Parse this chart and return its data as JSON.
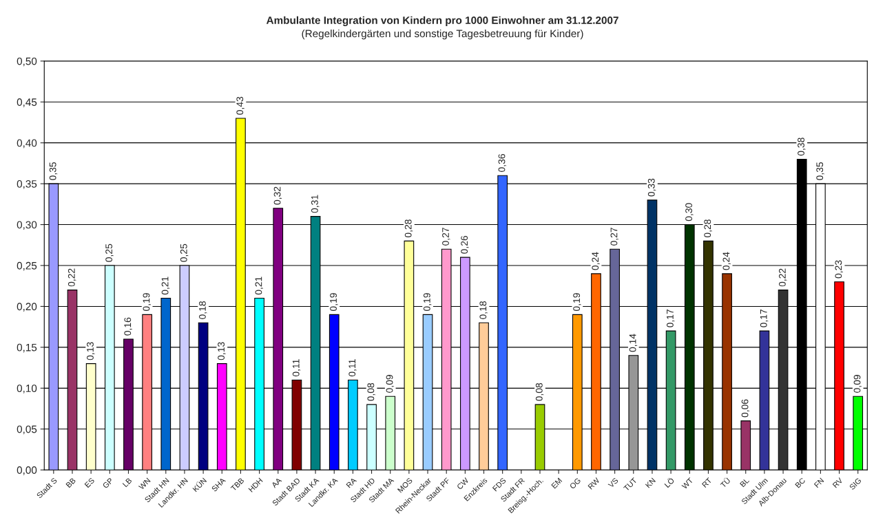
{
  "chart_data": {
    "type": "bar",
    "title": "Ambulante Integration von Kindern pro 1000 Einwohner am 31.12.2007",
    "subtitle": "(Regelkindergärten und sonstige Tagesbetreuung für Kinder)",
    "categories": [
      "Stadt S",
      "BB",
      "ES",
      "GP",
      "LB",
      "WN",
      "Stadt HN",
      "Landkr. HN",
      "KÜN",
      "SHA",
      "TBB",
      "HDH",
      "AA",
      "Stadt BAD",
      "Stadt KA",
      "Landkr. KA",
      "RA",
      "Stadt HD",
      "Stadt MA",
      "MOS",
      "Rhein-Neckar",
      "Stadt PF",
      "CW",
      "Enzkreis",
      "FDS",
      "Stadt FR",
      "Breisg.-Hoch.",
      "EM",
      "OG",
      "RW",
      "VS",
      "TUT",
      "KN",
      "LÖ",
      "WT",
      "RT",
      "TÜ",
      "BL",
      "Stadt Ulm",
      "Alb-Donau",
      "BC",
      "FN",
      "RV",
      "SIG"
    ],
    "values": [
      0.35,
      0.22,
      0.13,
      0.25,
      0.16,
      0.19,
      0.21,
      0.25,
      0.18,
      0.13,
      0.43,
      0.21,
      0.32,
      0.11,
      0.31,
      0.19,
      0.11,
      0.08,
      0.09,
      0.28,
      0.19,
      0.27,
      0.26,
      0.18,
      0.36,
      null,
      0.08,
      null,
      0.19,
      0.24,
      0.27,
      0.14,
      0.33,
      0.17,
      0.3,
      0.28,
      0.24,
      0.06,
      0.17,
      0.22,
      0.38,
      0.35,
      0.23,
      0.09
    ],
    "value_labels": [
      "0,35",
      "0,22",
      "0,13",
      "0,25",
      "0,16",
      "0,19",
      "0,21",
      "0,25",
      "0,18",
      "0,13",
      "0,43",
      "0,21",
      "0,32",
      "0,11",
      "0,31",
      "0,19",
      "0,11",
      "0,08",
      "0,09",
      "0,28",
      "0,19",
      "0,27",
      "0,26",
      "0,18",
      "0,36",
      null,
      "0,08",
      null,
      "0,19",
      "0,24",
      "0,27",
      "0,14",
      "0,33",
      "0,17",
      "0,30",
      "0,28",
      "0,24",
      "0,06",
      "0,17",
      "0,22",
      "0,38",
      "0,35",
      "0,23",
      "0,09"
    ],
    "colors": [
      "#9999ff",
      "#993366",
      "#ffffcc",
      "#ccffff",
      "#660066",
      "#ff8080",
      "#0066cc",
      "#ccccff",
      "#000080",
      "#ff00ff",
      "#ffff00",
      "#00ffff",
      "#800080",
      "#800000",
      "#008080",
      "#0000ff",
      "#00ccff",
      "#ccffff",
      "#ccffcc",
      "#ffff99",
      "#99ccff",
      "#ff99cc",
      "#cc99ff",
      "#ffcc99",
      "#3366ff",
      "#ffffff",
      "#99cc00",
      "#ffffff",
      "#ff9900",
      "#ff6600",
      "#666699",
      "#969696",
      "#003366",
      "#339966",
      "#003300",
      "#333300",
      "#993300",
      "#993366",
      "#333399",
      "#333333",
      "#000000",
      "#ffffff",
      "#ff0000",
      "#00ff00"
    ],
    "ylim": [
      0,
      0.5
    ],
    "yticks": [
      {
        "value": 0,
        "label": "0,00"
      },
      {
        "value": 0.05,
        "label": "0,05"
      },
      {
        "value": 0.1,
        "label": "0,10"
      },
      {
        "value": 0.15,
        "label": "0,15"
      },
      {
        "value": 0.2,
        "label": "0,20"
      },
      {
        "value": 0.25,
        "label": "0,25"
      },
      {
        "value": 0.3,
        "label": "0,30"
      },
      {
        "value": 0.35,
        "label": "0,35"
      },
      {
        "value": 0.4,
        "label": "0,40"
      },
      {
        "value": 0.45,
        "label": "0,45"
      },
      {
        "value": 0.5,
        "label": "0,50"
      }
    ],
    "grid": "y",
    "legend": false
  }
}
